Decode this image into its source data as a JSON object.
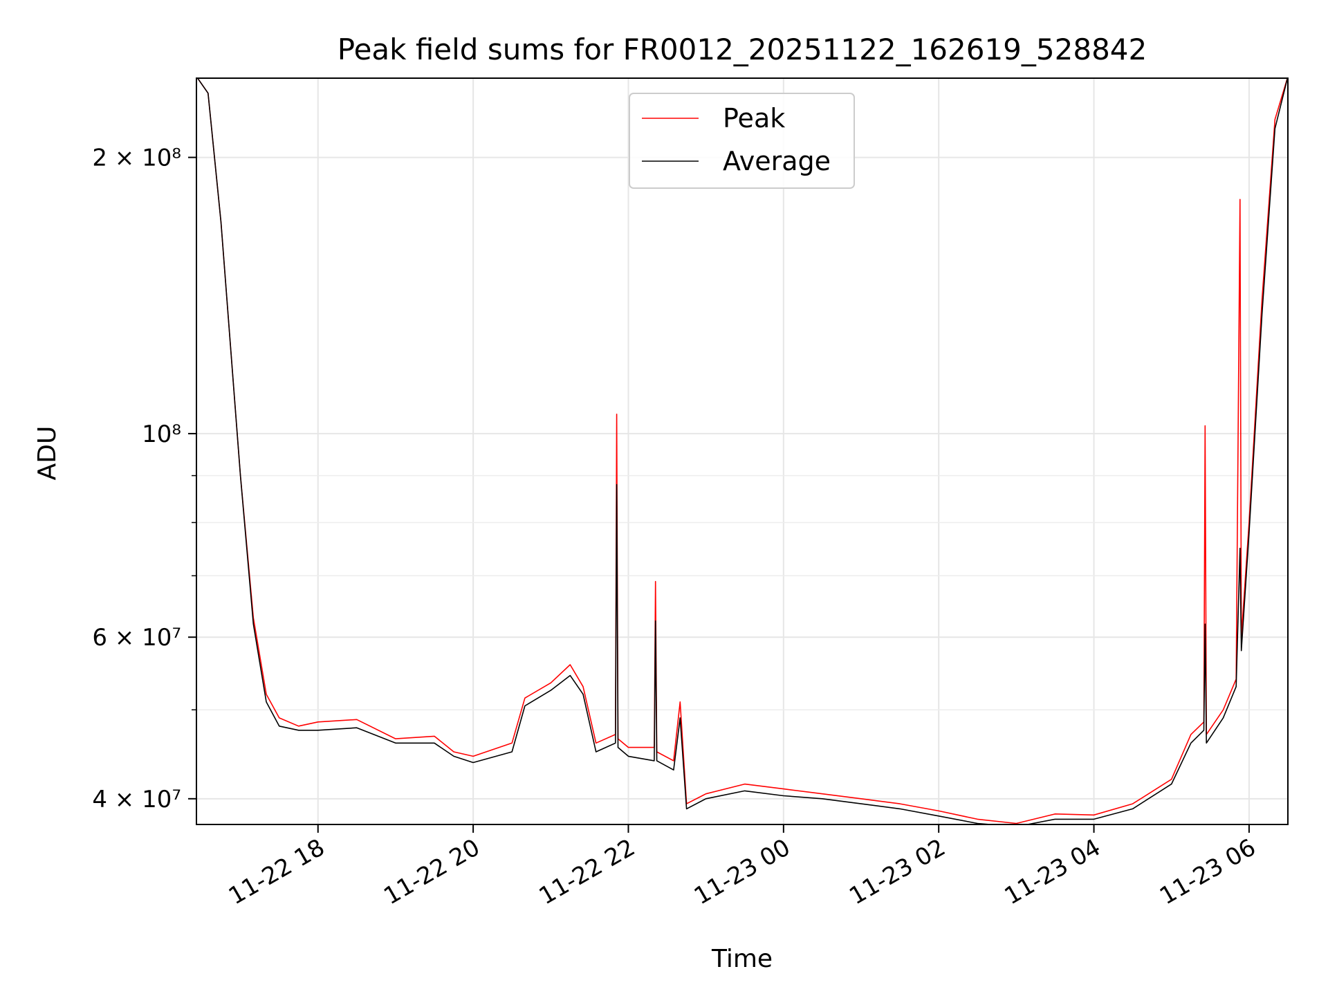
{
  "chart_data": {
    "type": "line",
    "title": "Peak field sums for FR0012_20251122_162619_528842",
    "xlabel": "Time",
    "ylabel": "ADU",
    "yscale": "log",
    "grid": true,
    "legend_position": "upper-center",
    "xlim": [
      "2025-11-22 16:26",
      "2025-11-23 06:30"
    ],
    "ylim": [
      37500000,
      244000000
    ],
    "x_ticks": [
      {
        "value": "2025-11-22 18:00",
        "label": "11-22 18"
      },
      {
        "value": "2025-11-22 20:00",
        "label": "11-22 20"
      },
      {
        "value": "2025-11-22 22:00",
        "label": "11-22 22"
      },
      {
        "value": "2025-11-23 00:00",
        "label": "11-23 00"
      },
      {
        "value": "2025-11-23 02:00",
        "label": "11-23 02"
      },
      {
        "value": "2025-11-23 04:00",
        "label": "11-23 04"
      },
      {
        "value": "2025-11-23 06:00",
        "label": "11-23 06"
      }
    ],
    "y_ticks": [
      {
        "value": 40000000,
        "label": "4 × 10⁷"
      },
      {
        "value": 60000000,
        "label": "6 × 10⁷"
      },
      {
        "value": 100000000,
        "label": "10⁸"
      },
      {
        "value": 200000000,
        "label": "2 × 10⁸"
      }
    ],
    "y_minor_ticks": [
      50000000,
      70000000,
      80000000,
      90000000
    ],
    "series": [
      {
        "name": "Peak",
        "color": "#ff0000",
        "x": [
          "2025-11-22 16:26",
          "2025-11-22 16:35",
          "2025-11-22 16:45",
          "2025-11-22 17:00",
          "2025-11-22 17:10",
          "2025-11-22 17:20",
          "2025-11-22 17:30",
          "2025-11-22 17:45",
          "2025-11-22 18:00",
          "2025-11-22 18:30",
          "2025-11-22 19:00",
          "2025-11-22 19:30",
          "2025-11-22 19:45",
          "2025-11-22 20:00",
          "2025-11-22 20:30",
          "2025-11-22 20:40",
          "2025-11-22 21:00",
          "2025-11-22 21:15",
          "2025-11-22 21:25",
          "2025-11-22 21:35",
          "2025-11-22 21:50",
          "2025-11-22 21:51",
          "2025-11-22 21:52",
          "2025-11-22 22:00",
          "2025-11-22 22:20",
          "2025-11-22 22:21",
          "2025-11-22 22:22",
          "2025-11-22 22:35",
          "2025-11-22 22:40",
          "2025-11-22 22:45",
          "2025-11-22 23:00",
          "2025-11-22 23:30",
          "2025-11-23 00:00",
          "2025-11-23 00:30",
          "2025-11-23 01:00",
          "2025-11-23 01:30",
          "2025-11-23 02:00",
          "2025-11-23 02:30",
          "2025-11-23 03:00",
          "2025-11-23 03:30",
          "2025-11-23 04:00",
          "2025-11-23 04:30",
          "2025-11-23 05:00",
          "2025-11-23 05:15",
          "2025-11-23 05:25",
          "2025-11-23 05:26",
          "2025-11-23 05:27",
          "2025-11-23 05:40",
          "2025-11-23 05:50",
          "2025-11-23 05:53",
          "2025-11-23 05:54",
          "2025-11-23 06:00",
          "2025-11-23 06:10",
          "2025-11-23 06:20",
          "2025-11-23 06:30"
        ],
        "values": [
          245000000,
          235000000,
          170000000,
          90000000,
          63000000,
          52000000,
          49000000,
          48000000,
          48500000,
          48800000,
          46500000,
          46800000,
          45000000,
          44500000,
          46000000,
          51500000,
          53500000,
          56000000,
          53000000,
          46000000,
          47000000,
          105000000,
          46500000,
          45500000,
          45500000,
          69000000,
          45000000,
          44000000,
          51000000,
          39500000,
          40500000,
          41500000,
          41000000,
          40500000,
          40000000,
          39500000,
          38800000,
          38000000,
          37600000,
          38500000,
          38400000,
          39500000,
          42000000,
          47000000,
          48500000,
          102000000,
          47000000,
          50000000,
          54000000,
          180000000,
          60000000,
          80000000,
          140000000,
          220000000,
          245000000
        ]
      },
      {
        "name": "Average",
        "color": "#000000",
        "x": [
          "2025-11-22 16:26",
          "2025-11-22 16:35",
          "2025-11-22 16:45",
          "2025-11-22 17:00",
          "2025-11-22 17:10",
          "2025-11-22 17:20",
          "2025-11-22 17:30",
          "2025-11-22 17:45",
          "2025-11-22 18:00",
          "2025-11-22 18:30",
          "2025-11-22 19:00",
          "2025-11-22 19:30",
          "2025-11-22 19:45",
          "2025-11-22 20:00",
          "2025-11-22 20:30",
          "2025-11-22 20:40",
          "2025-11-22 21:00",
          "2025-11-22 21:15",
          "2025-11-22 21:25",
          "2025-11-22 21:35",
          "2025-11-22 21:50",
          "2025-11-22 21:51",
          "2025-11-22 21:52",
          "2025-11-22 22:00",
          "2025-11-22 22:20",
          "2025-11-22 22:21",
          "2025-11-22 22:22",
          "2025-11-22 22:35",
          "2025-11-22 22:40",
          "2025-11-22 22:45",
          "2025-11-22 23:00",
          "2025-11-22 23:30",
          "2025-11-23 00:00",
          "2025-11-23 00:30",
          "2025-11-23 01:00",
          "2025-11-23 01:30",
          "2025-11-23 02:00",
          "2025-11-23 02:30",
          "2025-11-23 03:00",
          "2025-11-23 03:30",
          "2025-11-23 04:00",
          "2025-11-23 04:30",
          "2025-11-23 05:00",
          "2025-11-23 05:15",
          "2025-11-23 05:25",
          "2025-11-23 05:26",
          "2025-11-23 05:27",
          "2025-11-23 05:40",
          "2025-11-23 05:50",
          "2025-11-23 05:53",
          "2025-11-23 05:54",
          "2025-11-23 06:00",
          "2025-11-23 06:10",
          "2025-11-23 06:20",
          "2025-11-23 06:30"
        ],
        "values": [
          245000000,
          235000000,
          170000000,
          90000000,
          62000000,
          51000000,
          48000000,
          47500000,
          47500000,
          47800000,
          46000000,
          46000000,
          44500000,
          43800000,
          45000000,
          50500000,
          52500000,
          54500000,
          52000000,
          45000000,
          46000000,
          88000000,
          45500000,
          44500000,
          44000000,
          62500000,
          44000000,
          43000000,
          49000000,
          39000000,
          40000000,
          40800000,
          40300000,
          40000000,
          39500000,
          39000000,
          38300000,
          37600000,
          37300000,
          38000000,
          38000000,
          39000000,
          41500000,
          46000000,
          47500000,
          62000000,
          46000000,
          49000000,
          53000000,
          75000000,
          58000000,
          78000000,
          135000000,
          215000000,
          245000000
        ]
      }
    ]
  }
}
